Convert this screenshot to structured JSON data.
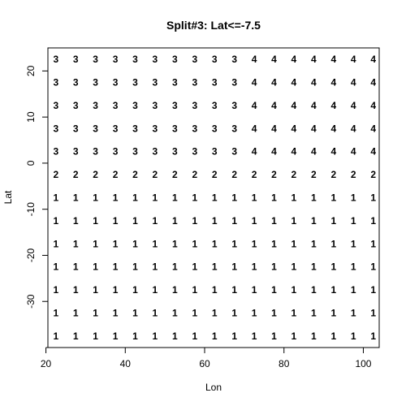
{
  "chart_data": {
    "type": "scatter",
    "title": "Split#3: Lat<=-7.5",
    "xlabel": "Lon",
    "ylabel": "Lat",
    "xlim": [
      20.5,
      104
    ],
    "ylim": [
      -40,
      25
    ],
    "x_ticks": [
      20,
      40,
      60,
      80,
      100
    ],
    "y_ticks": [
      -30,
      -20,
      -10,
      0,
      10,
      20
    ],
    "lon": [
      22.5,
      27.5,
      32.5,
      37.5,
      42.5,
      47.5,
      52.5,
      57.5,
      62.5,
      67.5,
      72.5,
      77.5,
      82.5,
      87.5,
      92.5,
      97.5,
      102.5
    ],
    "rows": [
      {
        "lat": 22.5,
        "labels": [
          "3",
          "3",
          "3",
          "3",
          "3",
          "3",
          "3",
          "3",
          "3",
          "3",
          "4",
          "4",
          "4",
          "4",
          "4",
          "4",
          "4"
        ]
      },
      {
        "lat": 17.5,
        "labels": [
          "3",
          "3",
          "3",
          "3",
          "3",
          "3",
          "3",
          "3",
          "3",
          "3",
          "4",
          "4",
          "4",
          "4",
          "4",
          "4",
          "4"
        ]
      },
      {
        "lat": 12.5,
        "labels": [
          "3",
          "3",
          "3",
          "3",
          "3",
          "3",
          "3",
          "3",
          "3",
          "3",
          "4",
          "4",
          "4",
          "4",
          "4",
          "4",
          "4"
        ]
      },
      {
        "lat": 7.5,
        "labels": [
          "3",
          "3",
          "3",
          "3",
          "3",
          "3",
          "3",
          "3",
          "3",
          "3",
          "4",
          "4",
          "4",
          "4",
          "4",
          "4",
          "4"
        ]
      },
      {
        "lat": 2.5,
        "labels": [
          "3",
          "3",
          "3",
          "3",
          "3",
          "3",
          "3",
          "3",
          "3",
          "3",
          "4",
          "4",
          "4",
          "4",
          "4",
          "4",
          "4"
        ]
      },
      {
        "lat": -2.5,
        "labels": [
          "2",
          "2",
          "2",
          "2",
          "2",
          "2",
          "2",
          "2",
          "2",
          "2",
          "2",
          "2",
          "2",
          "2",
          "2",
          "2",
          "2"
        ]
      },
      {
        "lat": -7.5,
        "labels": [
          "1",
          "1",
          "1",
          "1",
          "1",
          "1",
          "1",
          "1",
          "1",
          "1",
          "1",
          "1",
          "1",
          "1",
          "1",
          "1",
          "1"
        ]
      },
      {
        "lat": -12.5,
        "labels": [
          "1",
          "1",
          "1",
          "1",
          "1",
          "1",
          "1",
          "1",
          "1",
          "1",
          "1",
          "1",
          "1",
          "1",
          "1",
          "1",
          "1"
        ]
      },
      {
        "lat": -17.5,
        "labels": [
          "1",
          "1",
          "1",
          "1",
          "1",
          "1",
          "1",
          "1",
          "1",
          "1",
          "1",
          "1",
          "1",
          "1",
          "1",
          "1",
          "1"
        ]
      },
      {
        "lat": -22.5,
        "labels": [
          "1",
          "1",
          "1",
          "1",
          "1",
          "1",
          "1",
          "1",
          "1",
          "1",
          "1",
          "1",
          "1",
          "1",
          "1",
          "1",
          "1"
        ]
      },
      {
        "lat": -27.5,
        "labels": [
          "1",
          "1",
          "1",
          "1",
          "1",
          "1",
          "1",
          "1",
          "1",
          "1",
          "1",
          "1",
          "1",
          "1",
          "1",
          "1",
          "1"
        ]
      },
      {
        "lat": -32.5,
        "labels": [
          "1",
          "1",
          "1",
          "1",
          "1",
          "1",
          "1",
          "1",
          "1",
          "1",
          "1",
          "1",
          "1",
          "1",
          "1",
          "1",
          "1"
        ]
      },
      {
        "lat": -37.5,
        "labels": [
          "1",
          "1",
          "1",
          "1",
          "1",
          "1",
          "1",
          "1",
          "1",
          "1",
          "1",
          "1",
          "1",
          "1",
          "1",
          "1",
          "1"
        ]
      }
    ],
    "grid": false,
    "legend": "none"
  }
}
